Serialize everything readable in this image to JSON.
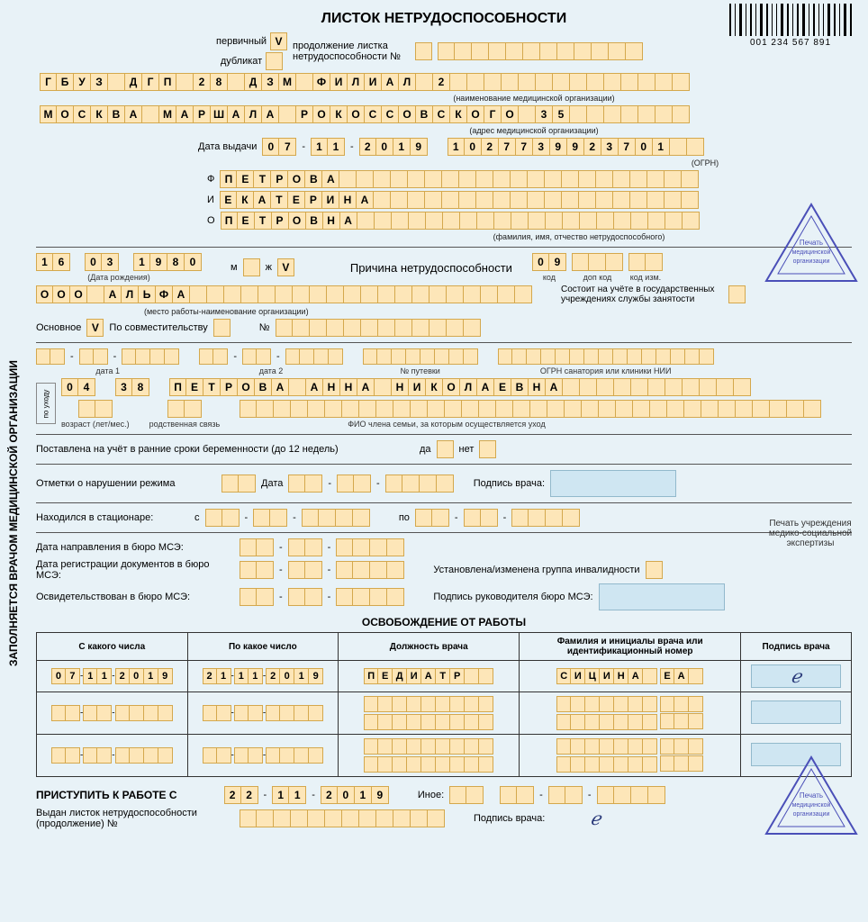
{
  "title": "ЛИСТОК НЕТРУДОСПОСОБНОСТИ",
  "barcode_number": "001 234 567 891",
  "primary_label": "первичный",
  "duplicate_label": "дубликат",
  "primary_check": "V",
  "cont_label": "продолжение листка нетрудоспособности №",
  "org_name": "ГБУЗ ДГП 28 ДЗМ ФИЛИАЛ 2",
  "org_name_label": "(наименование медицинской организации)",
  "org_addr": "МОСКВА МАРШАЛА РОКОССОВСКОГО 35",
  "org_addr_label": "(адрес медицинской организации)",
  "issue_label": "Дата выдачи",
  "issue_d": "07",
  "issue_m": "11",
  "issue_y": "2019",
  "ogrn": "1027739923701",
  "ogrn_label": "(ОГРН)",
  "f_label": "Ф",
  "i_label": "И",
  "o_label": "О",
  "surname": "ПЕТРОВА",
  "name": "ЕКАТЕРИНА",
  "patronymic": "ПЕТРОВНА",
  "fio_label": "(фамилия, имя, отчество нетрудоспособного)",
  "dob_d": "16",
  "dob_m": "03",
  "dob_y": "1980",
  "dob_label": "(Дата рождения)",
  "sex_m": "м",
  "sex_f": "ж",
  "sex_check": "V",
  "reason_title": "Причина нетрудоспособности",
  "reason_code": "09",
  "code_label": "код",
  "addcode_label": "доп код",
  "modcode_label": "код изм.",
  "employer": "ООО АЛЬФА",
  "employer_label": "(место работы-наименование организации)",
  "main_label": "Основное",
  "main_check": "V",
  "parttime_label": "По совместительству",
  "num_label": "№",
  "unemp_label": "Состоит на учёте в государственных учреждениях службы занятости",
  "date1_label": "дата 1",
  "date2_label": "дата 2",
  "voucher_label": "№ путевки",
  "sanatorium_label": "ОГРН санатория или клиники НИИ",
  "care_label": "по уходу",
  "care_age": "04",
  "care_rel": "38",
  "care_fio": "ПЕТРОВА АННА НИКОЛАЕВНА",
  "age_label": "возраст (лет/мес.)",
  "rel_label": "родственная связь",
  "carefio_label": "ФИО члена семьи, за которым осуществляется уход",
  "preg_label": "Поставлена на учёт в ранние сроки беременности (до 12 недель)",
  "yes": "да",
  "no": "нет",
  "violation_label": "Отметки о нарушении режима",
  "date_word": "Дата",
  "doctor_sig_label": "Подпись врача:",
  "hospital_label": "Находился в стационаре:",
  "from_label": "с",
  "to_label": "по",
  "mse1": "Дата направления в бюро МСЭ:",
  "mse2": "Дата регистрации документов в бюро МСЭ:",
  "mse3": "Освидетельствован в бюро МСЭ:",
  "disability_label": "Установлена/изменена группа инвалидности",
  "mse_sig_label": "Подпись руководителя бюро МСЭ:",
  "release_title": "ОСВОБОЖДЕНИЕ ОТ РАБОТЫ",
  "col_from": "С какого числа",
  "col_to": "По какое число",
  "col_position": "Должность врача",
  "col_doctor": "Фамилия и инициалы врача или идентификационный номер",
  "col_sig": "Подпись врача",
  "r1_from_d": "07",
  "r1_from_m": "11",
  "r1_from_y": "2019",
  "r1_to_d": "21",
  "r1_to_m": "11",
  "r1_to_y": "2019",
  "r1_position": "ПЕДИАТР",
  "r1_doctor": "СИЦИНА ЕА",
  "return_label": "ПРИСТУПИТЬ К РАБОТЕ  С",
  "return_d": "22",
  "return_m": "11",
  "return_y": "2019",
  "other_label": "Иное:",
  "cont_issued": "Выдан листок нетрудоспособности (продолжение)  №",
  "stamp1_label": "Печать медицинской организации",
  "stamp2_label": "Печать учреждения медико-социальной экспертизы",
  "stamp3_label": "Печать медицинской организации",
  "sidebar": "ЗАПОЛНЯЕТСЯ ВРАЧОМ МЕДИЦИНСКОЙ ОРГАНИЗАЦИИ",
  "colors": {
    "cell_bg": "#fde6b8",
    "cell_border": "#d4a84d",
    "bg": "#e8f2f7",
    "sig_bg": "#cfe6f2",
    "stamp": "#4a4fb8"
  }
}
